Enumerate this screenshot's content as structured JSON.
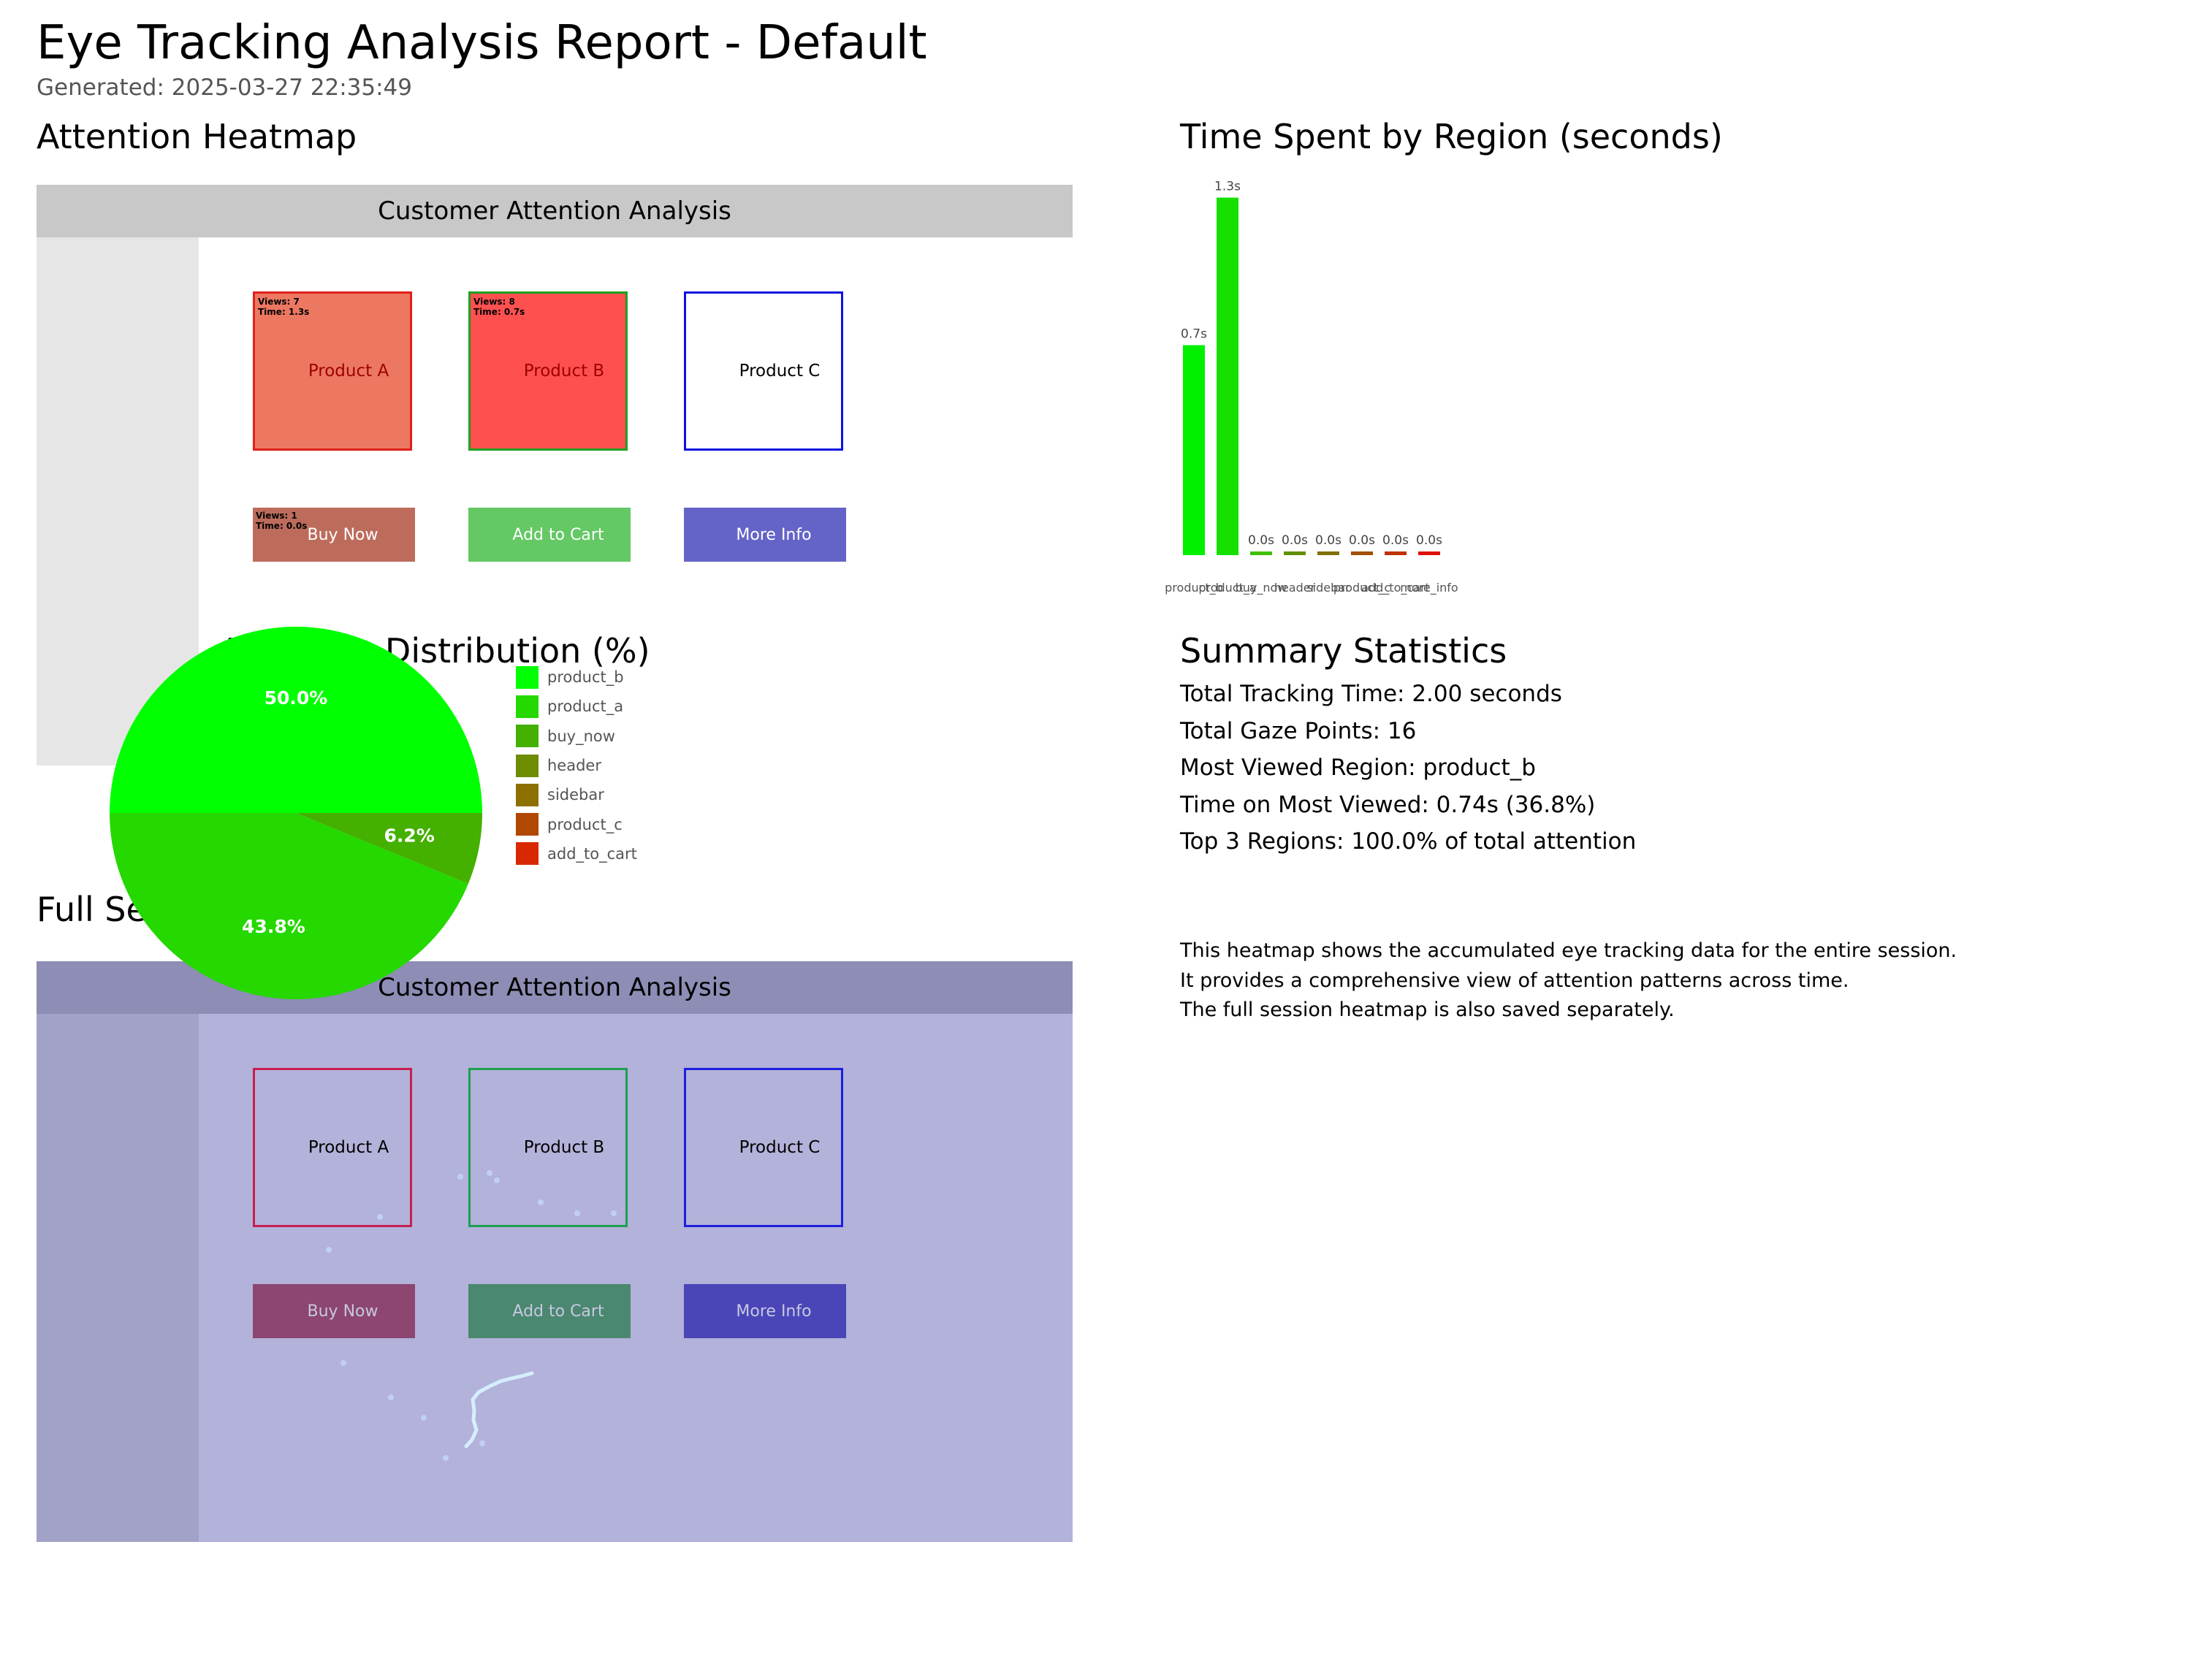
{
  "report": {
    "title": "Eye Tracking Analysis Report - Default",
    "generated": "Generated: 2025-03-27 22:35:49"
  },
  "sections": {
    "attention_heatmap": "Attention Heatmap",
    "time_spent": "Time Spent by Region (seconds)",
    "distribution": "Attention Distribution (%)",
    "summary": "Summary Statistics",
    "full_session": "Full Session Heatmap"
  },
  "layout": {
    "header": "Customer Attention Analysis",
    "products": [
      {
        "label": "Product A",
        "fill": "#ec7862",
        "border": "#e0201a",
        "stats": "Views: 7\nTime: 1.3s"
      },
      {
        "label": "Product B",
        "fill": "#ff5050",
        "border": "#20a020",
        "stats": "Views: 8\nTime: 0.7s"
      },
      {
        "label": "Product C",
        "fill": "#ffffff",
        "border": "#1010e0",
        "stats": ""
      }
    ],
    "buttons": [
      {
        "label": "Buy Now",
        "fill": "#bd6c5c",
        "stats": "Views: 1\nTime: 0.0s"
      },
      {
        "label": "Add to Cart",
        "fill": "#64c864",
        "stats": ""
      },
      {
        "label": "More Info",
        "fill": "#6464c8",
        "stats": ""
      }
    ]
  },
  "full_layout": {
    "header": "Customer Attention Analysis",
    "products": [
      {
        "label": "Product A",
        "border": "#c81e50"
      },
      {
        "label": "Product B",
        "border": "#1ea050"
      },
      {
        "label": "Product C",
        "border": "#1e1ee0"
      }
    ],
    "buttons": [
      {
        "label": "Buy Now",
        "fill": "#8c4670"
      },
      {
        "label": "Add to Cart",
        "fill": "#4a8870"
      },
      {
        "label": "More Info",
        "fill": "#4a46b8"
      }
    ]
  },
  "chart_data": [
    {
      "type": "bar",
      "title": "Time Spent by Region (seconds)",
      "categories": [
        "product_b",
        "product_a",
        "buy_now",
        "header",
        "sidebar",
        "product_c",
        "add_to_cart",
        "more_info"
      ],
      "values": [
        0.74,
        1.26,
        0.0,
        0.0,
        0.0,
        0.0,
        0.0,
        0.0
      ],
      "value_labels": [
        "0.7s",
        "1.3s",
        "0.0s",
        "0.0s",
        "0.0s",
        "0.0s",
        "0.0s",
        "0.0s"
      ],
      "colors": [
        "#00f000",
        "#16e000",
        "#40c000",
        "#609000",
        "#807000",
        "#a05000",
        "#c03000",
        "#e01000"
      ],
      "ylim": [
        0,
        1.3
      ]
    },
    {
      "type": "pie",
      "title": "Attention Distribution (%)",
      "labels": [
        "product_b",
        "product_a",
        "buy_now",
        "header",
        "sidebar",
        "product_c",
        "add_to_cart"
      ],
      "values": [
        50.0,
        43.8,
        6.2,
        0,
        0,
        0,
        0
      ],
      "value_labels": [
        "50.0%",
        "43.8%",
        "6.2%",
        "",
        "",
        "",
        ""
      ],
      "colors": [
        "#00ff00",
        "#24d800",
        "#44b000",
        "#6e8c00",
        "#8c7000",
        "#b04800",
        "#d82800"
      ],
      "legend": "right"
    }
  ],
  "summary": [
    "Total Tracking Time: 2.00 seconds",
    "Total Gaze Points: 16",
    "Most Viewed Region: product_b",
    "Time on Most Viewed: 0.74s (36.8%)",
    "Top 3 Regions: 100.0% of total attention"
  ],
  "note": [
    "This heatmap shows the accumulated eye tracking data for the entire session.",
    "It provides a comprehensive view of attention patterns across time.",
    "The full session heatmap is also saved separately."
  ]
}
